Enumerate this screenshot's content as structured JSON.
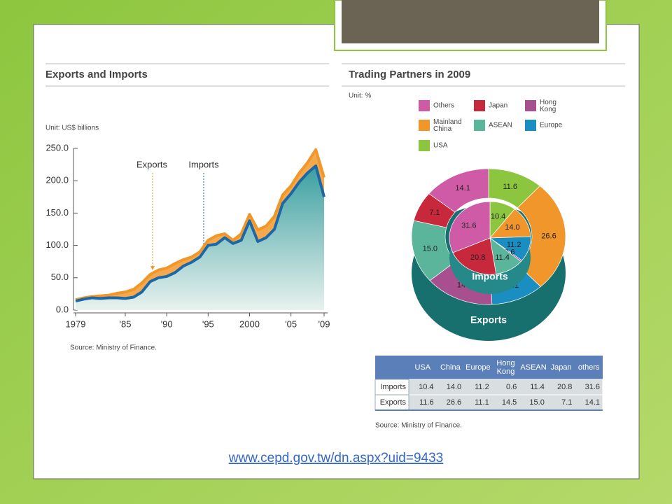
{
  "chart_data": [
    {
      "type": "area",
      "title": "Exports and Imports",
      "unit": "Unit: US$ billions",
      "source": "Source: Ministry of Finance.",
      "annotations": [
        "Exports",
        "Imports"
      ],
      "x": [
        1979,
        1980,
        1981,
        1982,
        1983,
        1984,
        1985,
        1986,
        1987,
        1988,
        1989,
        1990,
        1991,
        1992,
        1993,
        1994,
        1995,
        1996,
        1997,
        1998,
        1999,
        2000,
        2001,
        2002,
        2003,
        2004,
        2005,
        2006,
        2007,
        2008,
        2009
      ],
      "xlim": [
        1979,
        2009
      ],
      "xticks": [
        1979,
        {
          "value": 1985,
          "label": "'85"
        },
        {
          "value": 1990,
          "label": "'90"
        },
        {
          "value": 1995,
          "label": "'95"
        },
        2000,
        {
          "value": 2005,
          "label": "'05"
        },
        {
          "value": 2009,
          "label": "'09"
        }
      ],
      "ylim": [
        0,
        250
      ],
      "yticks": [
        {
          "value": 0,
          "label": "0.0"
        },
        {
          "value": 50,
          "label": "50.0"
        },
        {
          "value": 100,
          "label": "100.0"
        },
        {
          "value": 150,
          "label": "150.0"
        },
        {
          "value": 200,
          "label": "200.0"
        },
        {
          "value": 250,
          "label": "250.0"
        }
      ],
      "series": [
        {
          "name": "Exports",
          "color": "#f0962a",
          "values": [
            16,
            19,
            21,
            22,
            23,
            26,
            28,
            32,
            42,
            55,
            62,
            65,
            72,
            78,
            82,
            90,
            108,
            115,
            118,
            108,
            118,
            148,
            124,
            130,
            145,
            178,
            192,
            212,
            228,
            248,
            205
          ]
        },
        {
          "name": "Imports",
          "color": "#1b67a8",
          "values": [
            14,
            17,
            19,
            18,
            19,
            19,
            18,
            20,
            28,
            44,
            50,
            52,
            58,
            68,
            74,
            82,
            100,
            102,
            112,
            103,
            108,
            138,
            106,
            112,
            125,
            165,
            180,
            198,
            212,
            223,
            175
          ]
        }
      ]
    },
    {
      "type": "donut",
      "title": "Trading Partners in 2009",
      "unit": "Unit: %",
      "categories": [
        "USA",
        "Mainland China",
        "Europe",
        "Hong Kong",
        "ASEAN",
        "Japan",
        "Others"
      ],
      "colors": [
        "#8cc63f",
        "#f0962a",
        "#1a8ec0",
        "#a8508f",
        "#5bb59a",
        "#c8283c",
        "#cf5aa5"
      ],
      "series": [
        {
          "name": "Imports",
          "values": [
            10.4,
            14.0,
            11.2,
            0.6,
            11.4,
            20.8,
            31.6
          ],
          "value_labels": [
            "10.4",
            "14.0",
            "11.2",
            "0.6",
            "11.4",
            "20.8",
            "31.6"
          ]
        },
        {
          "name": "Exports",
          "values": [
            11.6,
            26.6,
            11.1,
            14.5,
            15.0,
            7.1,
            14.1
          ],
          "value_labels": [
            "11.6",
            "26.6",
            "11.1",
            "14.5",
            "15.0",
            "7.1",
            "14.1"
          ]
        }
      ]
    }
  ],
  "table": {
    "header": [
      "USA",
      "China",
      "Europe",
      "Hong Kong",
      "ASEAN",
      "Japan",
      "others"
    ],
    "rows": [
      {
        "label": "Imports",
        "cells": [
          "10.4",
          "14.0",
          "11.2",
          "0.6",
          "11.4",
          "20.8",
          "31.6"
        ]
      },
      {
        "label": "Exports",
        "cells": [
          "11.6",
          "26.6",
          "11.1",
          "14.5",
          "15.0",
          "7.1",
          "14.1"
        ]
      }
    ],
    "source": "Source: Ministry of Finance."
  },
  "link": "www.cepd.gov.tw/dn.aspx?uid=9433"
}
